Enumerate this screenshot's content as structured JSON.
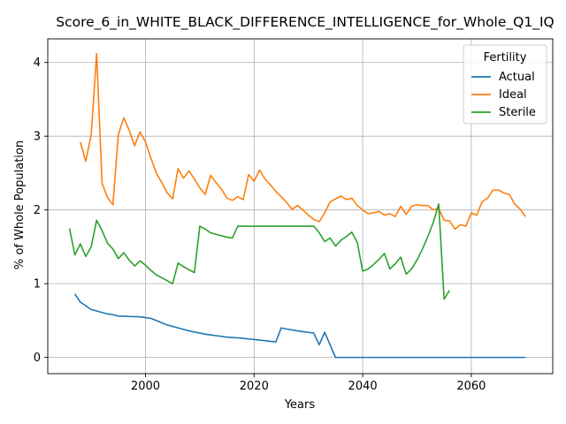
{
  "chart_data": {
    "type": "line",
    "title": "Score_6_in_WHITE_BLACK_DIFFERENCE_INTELLIGENCE_for_Whole_Q1_IQ",
    "xlabel": "Years",
    "ylabel": "% of Whole Population",
    "xlim": [
      1982,
      2075
    ],
    "ylim": [
      -0.22,
      4.32
    ],
    "xticks": [
      2000,
      2020,
      2040,
      2060
    ],
    "yticks": [
      0,
      1,
      2,
      3,
      4
    ],
    "grid": true,
    "legend": {
      "title": "Fertility",
      "placement": "top-right"
    },
    "colors": {
      "Actual": "#1f77b4",
      "Ideal": "#ff7f0e",
      "Sterile": "#2ca02c"
    },
    "series": [
      {
        "name": "Actual",
        "points": [
          [
            1987,
            0.86
          ],
          [
            1988,
            0.75
          ],
          [
            1989,
            0.7
          ],
          [
            1990,
            0.65
          ],
          [
            1991,
            0.63
          ],
          [
            1992,
            0.61
          ],
          [
            1993,
            0.59
          ],
          [
            1994,
            0.58
          ],
          [
            1995,
            0.56
          ],
          [
            1996,
            0.56
          ],
          [
            1997,
            0.555
          ],
          [
            1998,
            0.553
          ],
          [
            1999,
            0.55
          ],
          [
            2000,
            0.54
          ],
          [
            2001,
            0.53
          ],
          [
            2002,
            0.5
          ],
          [
            2003,
            0.47
          ],
          [
            2004,
            0.44
          ],
          [
            2005,
            0.42
          ],
          [
            2006,
            0.4
          ],
          [
            2007,
            0.38
          ],
          [
            2008,
            0.36
          ],
          [
            2009,
            0.345
          ],
          [
            2010,
            0.33
          ],
          [
            2011,
            0.315
          ],
          [
            2012,
            0.305
          ],
          [
            2013,
            0.295
          ],
          [
            2014,
            0.285
          ],
          [
            2015,
            0.275
          ],
          [
            2016,
            0.27
          ],
          [
            2017,
            0.265
          ],
          [
            2018,
            0.258
          ],
          [
            2019,
            0.25
          ],
          [
            2020,
            0.243
          ],
          [
            2021,
            0.235
          ],
          [
            2022,
            0.227
          ],
          [
            2023,
            0.218
          ],
          [
            2024,
            0.21
          ],
          [
            2025,
            0.4
          ],
          [
            2026,
            0.385
          ],
          [
            2027,
            0.372
          ],
          [
            2028,
            0.36
          ],
          [
            2029,
            0.35
          ],
          [
            2030,
            0.34
          ],
          [
            2031,
            0.33
          ],
          [
            2032,
            0.17
          ],
          [
            2033,
            0.34
          ],
          [
            2034,
            0.17
          ],
          [
            2035,
            0.0
          ],
          [
            2040,
            0.0
          ],
          [
            2050,
            0.0
          ],
          [
            2060,
            0.0
          ],
          [
            2070,
            0.0
          ]
        ]
      },
      {
        "name": "Ideal",
        "points": [
          [
            1988,
            2.92
          ],
          [
            1989,
            2.66
          ],
          [
            1990,
            3.02
          ],
          [
            1991,
            4.12
          ],
          [
            1992,
            2.36
          ],
          [
            1993,
            2.17
          ],
          [
            1994,
            2.07
          ],
          [
            1995,
            3.02
          ],
          [
            1996,
            3.25
          ],
          [
            1997,
            3.08
          ],
          [
            1998,
            2.87
          ],
          [
            1999,
            3.06
          ],
          [
            2000,
            2.92
          ],
          [
            2001,
            2.7
          ],
          [
            2002,
            2.5
          ],
          [
            2003,
            2.37
          ],
          [
            2004,
            2.23
          ],
          [
            2005,
            2.15
          ],
          [
            2006,
            2.56
          ],
          [
            2007,
            2.43
          ],
          [
            2008,
            2.53
          ],
          [
            2009,
            2.42
          ],
          [
            2010,
            2.3
          ],
          [
            2011,
            2.21
          ],
          [
            2012,
            2.47
          ],
          [
            2013,
            2.37
          ],
          [
            2014,
            2.28
          ],
          [
            2015,
            2.16
          ],
          [
            2016,
            2.13
          ],
          [
            2017,
            2.18
          ],
          [
            2018,
            2.14
          ],
          [
            2019,
            2.48
          ],
          [
            2020,
            2.39
          ],
          [
            2021,
            2.54
          ],
          [
            2022,
            2.42
          ],
          [
            2023,
            2.34
          ],
          [
            2024,
            2.25
          ],
          [
            2025,
            2.18
          ],
          [
            2026,
            2.1
          ],
          [
            2027,
            2.01
          ],
          [
            2028,
            2.06
          ],
          [
            2029,
            2.0
          ],
          [
            2030,
            1.93
          ],
          [
            2031,
            1.87
          ],
          [
            2032,
            1.84
          ],
          [
            2033,
            1.96
          ],
          [
            2034,
            2.11
          ],
          [
            2035,
            2.15
          ],
          [
            2036,
            2.19
          ],
          [
            2037,
            2.14
          ],
          [
            2038,
            2.16
          ],
          [
            2039,
            2.06
          ],
          [
            2040,
            2.0
          ],
          [
            2041,
            1.95
          ],
          [
            2042,
            1.96
          ],
          [
            2043,
            1.98
          ],
          [
            2044,
            1.93
          ],
          [
            2045,
            1.95
          ],
          [
            2046,
            1.91
          ],
          [
            2047,
            2.05
          ],
          [
            2048,
            1.94
          ],
          [
            2049,
            2.05
          ],
          [
            2050,
            2.07
          ],
          [
            2051,
            2.06
          ],
          [
            2052,
            2.06
          ],
          [
            2053,
            2.0
          ],
          [
            2054,
            2.02
          ],
          [
            2055,
            1.86
          ],
          [
            2056,
            1.85
          ],
          [
            2057,
            1.74
          ],
          [
            2058,
            1.8
          ],
          [
            2059,
            1.78
          ],
          [
            2060,
            1.96
          ],
          [
            2061,
            1.93
          ],
          [
            2062,
            2.11
          ],
          [
            2063,
            2.16
          ],
          [
            2064,
            2.27
          ],
          [
            2065,
            2.27
          ],
          [
            2066,
            2.23
          ],
          [
            2067,
            2.21
          ],
          [
            2068,
            2.08
          ],
          [
            2069,
            2.01
          ],
          [
            2070,
            1.91
          ]
        ]
      },
      {
        "name": "Sterile",
        "points": [
          [
            1986,
            1.75
          ],
          [
            1987,
            1.39
          ],
          [
            1988,
            1.54
          ],
          [
            1989,
            1.37
          ],
          [
            1990,
            1.5
          ],
          [
            1991,
            1.86
          ],
          [
            1992,
            1.72
          ],
          [
            1993,
            1.55
          ],
          [
            1994,
            1.47
          ],
          [
            1995,
            1.34
          ],
          [
            1996,
            1.42
          ],
          [
            1997,
            1.32
          ],
          [
            1998,
            1.24
          ],
          [
            1999,
            1.31
          ],
          [
            2000,
            1.25
          ],
          [
            2001,
            1.18
          ],
          [
            2002,
            1.12
          ],
          [
            2003,
            1.08
          ],
          [
            2004,
            1.04
          ],
          [
            2005,
            1.0
          ],
          [
            2006,
            1.28
          ],
          [
            2007,
            1.23
          ],
          [
            2008,
            1.19
          ],
          [
            2009,
            1.15
          ],
          [
            2010,
            1.78
          ],
          [
            2011,
            1.74
          ],
          [
            2012,
            1.69
          ],
          [
            2013,
            1.67
          ],
          [
            2014,
            1.65
          ],
          [
            2015,
            1.63
          ],
          [
            2016,
            1.62
          ],
          [
            2017,
            1.78
          ],
          [
            2018,
            1.78
          ],
          [
            2020,
            1.78
          ],
          [
            2025,
            1.78
          ],
          [
            2030,
            1.78
          ],
          [
            2031,
            1.78
          ],
          [
            2032,
            1.69
          ],
          [
            2033,
            1.57
          ],
          [
            2034,
            1.62
          ],
          [
            2035,
            1.51
          ],
          [
            2036,
            1.59
          ],
          [
            2037,
            1.64
          ],
          [
            2038,
            1.7
          ],
          [
            2039,
            1.56
          ],
          [
            2040,
            1.17
          ],
          [
            2041,
            1.2
          ],
          [
            2042,
            1.26
          ],
          [
            2043,
            1.33
          ],
          [
            2044,
            1.41
          ],
          [
            2045,
            1.2
          ],
          [
            2046,
            1.27
          ],
          [
            2047,
            1.36
          ],
          [
            2048,
            1.13
          ],
          [
            2049,
            1.2
          ],
          [
            2050,
            1.32
          ],
          [
            2051,
            1.47
          ],
          [
            2052,
            1.64
          ],
          [
            2053,
            1.83
          ],
          [
            2054,
            2.08
          ],
          [
            2055,
            0.79
          ],
          [
            2056,
            0.91
          ]
        ]
      }
    ]
  }
}
